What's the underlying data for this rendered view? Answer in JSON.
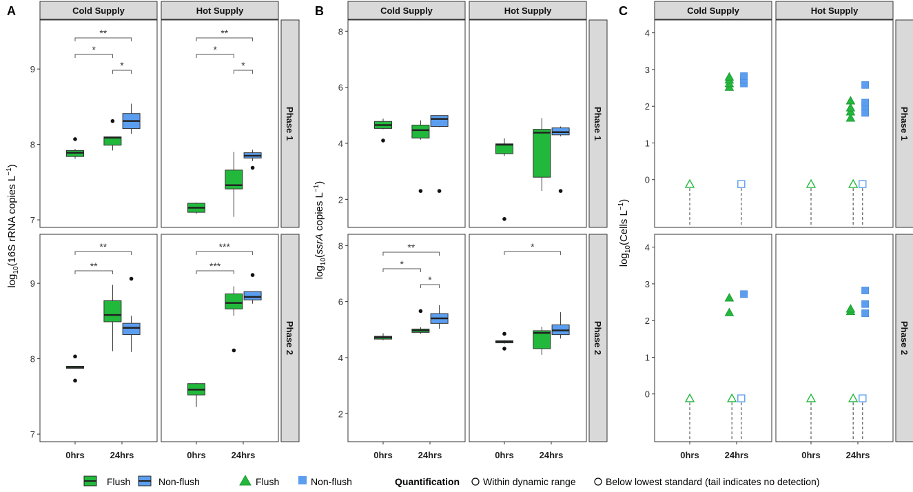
{
  "figure": {
    "panel_letters": [
      "A",
      "B",
      "C"
    ],
    "column_strips": [
      "Cold Supply",
      "Hot Supply"
    ],
    "row_strips": [
      "Phase 1",
      "Phase 2"
    ],
    "x_categories": [
      "0hrs",
      "24hrs"
    ],
    "ylabel_a_main": "log",
    "ylabel_a_sub": "10",
    "ylabel_a_rest": "(16S rRNA copies L",
    "ylabel_a_sup": "−1",
    "ylabel_a_end": ")",
    "ylabel_b_main": "log",
    "ylabel_b_sub": "10",
    "ylabel_b_open": "(",
    "ylabel_b_ital": "ssrA",
    "ylabel_b_rest": " copies L",
    "ylabel_b_sup": "−1",
    "ylabel_b_end": ")",
    "ylabel_c_main": "log",
    "ylabel_c_sub": "10",
    "ylabel_c_rest": "(Cells L",
    "ylabel_c_sup": "−1",
    "ylabel_c_end": ")"
  },
  "legend": {
    "box_flush": "Flush",
    "box_nonflush": "Non-flush",
    "pt_flush": "Flush",
    "pt_nonflush": "Non-flush",
    "quant_title": "Quantification",
    "quant_within": "Within dynamic range",
    "quant_below": "Below lowest standard (tail indicates no detection)"
  },
  "colors": {
    "flush": "#22b83c",
    "nonflush": "#5b9ef0",
    "strip": "#d9d9d9",
    "dark": "#222222"
  },
  "chart_data": [
    {
      "panel": "A",
      "type": "box",
      "ylim": [
        6.9,
        9.65
      ],
      "yticks": [
        7,
        8,
        9
      ],
      "ylabel": "log10(16S rRNA copies L−1)",
      "facets": [
        {
          "col": "Cold Supply",
          "row": "Phase 1",
          "boxes": [
            {
              "x": "0hrs",
              "group": "Flush",
              "q1": 7.84,
              "med": 7.89,
              "q3": 7.92,
              "lo": 7.81,
              "hi": 7.94,
              "out": [
                8.07
              ]
            },
            {
              "x": "24hrs",
              "group": "Flush",
              "q1": 7.99,
              "med": 8.09,
              "q3": 8.1,
              "lo": 7.92,
              "hi": 8.1,
              "out": [
                8.31
              ]
            },
            {
              "x": "24hrs",
              "group": "Non-flush",
              "q1": 8.21,
              "med": 8.31,
              "q3": 8.41,
              "lo": 8.14,
              "hi": 8.54,
              "out": []
            }
          ],
          "sig": [
            {
              "from": "0hrs",
              "to": "24hrs-Non-flush",
              "label": "**"
            },
            {
              "from": "0hrs",
              "to": "24hrs-Flush",
              "label": "*"
            },
            {
              "from": "24hrs-Flush",
              "to": "24hrs-Non-flush",
              "label": "*"
            }
          ]
        },
        {
          "col": "Hot Supply",
          "row": "Phase 1",
          "boxes": [
            {
              "x": "0hrs",
              "group": "Flush",
              "q1": 7.1,
              "med": 7.16,
              "q3": 7.22,
              "lo": 7.08,
              "hi": 7.23,
              "out": []
            },
            {
              "x": "24hrs",
              "group": "Flush",
              "q1": 7.41,
              "med": 7.46,
              "q3": 7.66,
              "lo": 7.04,
              "hi": 7.9,
              "out": []
            },
            {
              "x": "24hrs",
              "group": "Non-flush",
              "q1": 7.82,
              "med": 7.85,
              "q3": 7.89,
              "lo": 7.78,
              "hi": 7.93,
              "out": [
                7.69
              ]
            }
          ],
          "sig": [
            {
              "from": "0hrs",
              "to": "24hrs-Non-flush",
              "label": "**"
            },
            {
              "from": "0hrs",
              "to": "24hrs-Flush",
              "label": "*"
            },
            {
              "from": "24hrs-Flush",
              "to": "24hrs-Non-flush",
              "label": "*"
            }
          ]
        },
        {
          "col": "Cold Supply",
          "row": "Phase 2",
          "boxes": [
            {
              "x": "0hrs",
              "group": "Flush",
              "q1": 7.89,
              "med": 7.89,
              "q3": 7.9,
              "lo": 7.89,
              "hi": 7.9,
              "out": [
                8.03,
                7.71
              ]
            },
            {
              "x": "24hrs",
              "group": "Flush",
              "q1": 8.49,
              "med": 8.58,
              "q3": 8.77,
              "lo": 8.1,
              "hi": 8.98,
              "out": []
            },
            {
              "x": "24hrs",
              "group": "Non-flush",
              "q1": 8.32,
              "med": 8.41,
              "q3": 8.47,
              "lo": 8.09,
              "hi": 8.57,
              "out": [
                9.06
              ]
            }
          ],
          "sig": [
            {
              "from": "0hrs",
              "to": "24hrs-Non-flush",
              "label": "**"
            },
            {
              "from": "0hrs",
              "to": "24hrs-Flush",
              "label": "**"
            }
          ]
        },
        {
          "col": "Hot Supply",
          "row": "Phase 2",
          "boxes": [
            {
              "x": "0hrs",
              "group": "Flush",
              "q1": 7.52,
              "med": 7.59,
              "q3": 7.67,
              "lo": 7.36,
              "hi": 7.68,
              "out": []
            },
            {
              "x": "24hrs",
              "group": "Flush",
              "q1": 8.66,
              "med": 8.74,
              "q3": 8.86,
              "lo": 8.57,
              "hi": 8.96,
              "out": [
                8.11
              ]
            },
            {
              "x": "24hrs",
              "group": "Non-flush",
              "q1": 8.78,
              "med": 8.82,
              "q3": 8.89,
              "lo": 8.73,
              "hi": 8.89,
              "out": [
                9.11
              ]
            }
          ],
          "sig": [
            {
              "from": "0hrs",
              "to": "24hrs-Non-flush",
              "label": "***"
            },
            {
              "from": "0hrs",
              "to": "24hrs-Flush",
              "label": "***"
            }
          ]
        }
      ]
    },
    {
      "panel": "B",
      "type": "box",
      "ylim": [
        1,
        8.4
      ],
      "yticks": [
        2,
        4,
        6,
        8
      ],
      "ylabel": "log10(ssrA copies L−1)",
      "facets": [
        {
          "col": "Cold Supply",
          "row": "Phase 1",
          "boxes": [
            {
              "x": "0hrs",
              "group": "Flush",
              "q1": 4.53,
              "med": 4.65,
              "q3": 4.78,
              "lo": 4.5,
              "hi": 4.88,
              "out": [
                4.1
              ]
            },
            {
              "x": "24hrs",
              "group": "Flush",
              "q1": 4.19,
              "med": 4.47,
              "q3": 4.65,
              "lo": 4.13,
              "hi": 4.82,
              "out": [
                2.3
              ]
            },
            {
              "x": "24hrs",
              "group": "Non-flush",
              "q1": 4.6,
              "med": 4.87,
              "q3": 4.99,
              "lo": 4.58,
              "hi": 4.99,
              "out": [
                2.3
              ]
            }
          ],
          "sig": []
        },
        {
          "col": "Hot Supply",
          "row": "Phase 1",
          "boxes": [
            {
              "x": "0hrs",
              "group": "Flush",
              "q1": 3.63,
              "med": 3.95,
              "q3": 3.98,
              "lo": 3.55,
              "hi": 4.18,
              "out": [
                1.3
              ]
            },
            {
              "x": "24hrs",
              "group": "Flush",
              "q1": 2.79,
              "med": 4.38,
              "q3": 4.5,
              "lo": 2.3,
              "hi": 4.9,
              "out": []
            },
            {
              "x": "24hrs",
              "group": "Non-flush",
              "q1": 4.3,
              "med": 4.4,
              "q3": 4.55,
              "lo": 4.25,
              "hi": 4.6,
              "out": [
                2.3
              ]
            }
          ],
          "sig": []
        },
        {
          "col": "Cold Supply",
          "row": "Phase 2",
          "boxes": [
            {
              "x": "0hrs",
              "group": "Flush",
              "q1": 4.66,
              "med": 4.72,
              "q3": 4.76,
              "lo": 4.62,
              "hi": 4.87,
              "out": []
            },
            {
              "x": "24hrs",
              "group": "Flush",
              "q1": 4.9,
              "med": 4.97,
              "q3": 5.02,
              "lo": 4.85,
              "hi": 5.08,
              "out": [
                5.66
              ]
            },
            {
              "x": "24hrs",
              "group": "Non-flush",
              "q1": 5.22,
              "med": 5.4,
              "q3": 5.57,
              "lo": 5.03,
              "hi": 5.87,
              "out": []
            }
          ],
          "sig": [
            {
              "from": "0hrs",
              "to": "24hrs-Non-flush",
              "label": "**"
            },
            {
              "from": "0hrs",
              "to": "24hrs-Flush",
              "label": "*"
            },
            {
              "from": "24hrs-Flush",
              "to": "24hrs-Non-flush",
              "label": "*"
            }
          ]
        },
        {
          "col": "Hot Supply",
          "row": "Phase 2",
          "boxes": [
            {
              "x": "0hrs",
              "group": "Flush",
              "q1": 4.53,
              "med": 4.57,
              "q3": 4.6,
              "lo": 4.5,
              "hi": 4.62,
              "out": [
                4.85,
                4.32
              ]
            },
            {
              "x": "24hrs",
              "group": "Flush",
              "q1": 4.32,
              "med": 4.88,
              "q3": 4.96,
              "lo": 4.1,
              "hi": 5.1,
              "out": []
            },
            {
              "x": "24hrs",
              "group": "Non-flush",
              "q1": 4.82,
              "med": 4.97,
              "q3": 5.17,
              "lo": 4.68,
              "hi": 5.62,
              "out": []
            }
          ],
          "sig": [
            {
              "from": "0hrs",
              "to": "24hrs-Non-flush",
              "label": "*"
            }
          ]
        }
      ]
    },
    {
      "panel": "C",
      "type": "scatter",
      "ylim": [
        -1.3,
        4.35
      ],
      "yticks": [
        0,
        1,
        2,
        3,
        4
      ],
      "ylabel": "log10(Cells L−1)",
      "facets": [
        {
          "col": "Cold Supply",
          "row": "Phase 1",
          "filled": [
            {
              "x": "24hrs",
              "group": "Flush",
              "values": [
                2.52,
                2.62,
                2.72,
                2.8
              ]
            },
            {
              "x": "24hrs",
              "group": "Non-flush",
              "values": [
                2.62,
                2.72,
                2.82
              ]
            }
          ],
          "hollow": [
            {
              "x": "0hrs",
              "group": "Flush",
              "value": -0.12
            },
            {
              "x": "24hrs",
              "group": "Non-flush",
              "value": -0.12
            }
          ]
        },
        {
          "col": "Hot Supply",
          "row": "Phase 1",
          "filled": [
            {
              "x": "24hrs",
              "group": "Flush",
              "values": [
                1.68,
                1.85,
                1.96,
                2.15
              ]
            },
            {
              "x": "24hrs",
              "group": "Non-flush",
              "values": [
                1.82,
                2.0,
                2.1,
                2.58
              ]
            }
          ],
          "hollow": [
            {
              "x": "0hrs",
              "group": "Flush",
              "value": -0.12
            },
            {
              "x": "24hrs",
              "group": "Flush",
              "value": -0.12
            },
            {
              "x": "24hrs",
              "group": "Non-flush",
              "value": -0.12
            }
          ]
        },
        {
          "col": "Cold Supply",
          "row": "Phase 2",
          "filled": [
            {
              "x": "24hrs",
              "group": "Flush",
              "values": [
                2.22,
                2.62
              ]
            },
            {
              "x": "24hrs",
              "group": "Non-flush",
              "values": [
                2.72
              ]
            }
          ],
          "hollow": [
            {
              "x": "0hrs",
              "group": "Flush",
              "value": -0.12
            },
            {
              "x": "24hrs",
              "group": "Flush",
              "value": -0.12
            },
            {
              "x": "24hrs",
              "group": "Non-flush",
              "value": -0.12
            }
          ]
        },
        {
          "col": "Hot Supply",
          "row": "Phase 2",
          "filled": [
            {
              "x": "24hrs",
              "group": "Flush",
              "values": [
                2.25,
                2.32
              ]
            },
            {
              "x": "24hrs",
              "group": "Non-flush",
              "values": [
                2.2,
                2.45,
                2.82
              ]
            }
          ],
          "hollow": [
            {
              "x": "0hrs",
              "group": "Flush",
              "value": -0.12
            },
            {
              "x": "24hrs",
              "group": "Flush",
              "value": -0.12
            },
            {
              "x": "24hrs",
              "group": "Non-flush",
              "value": -0.12
            }
          ]
        }
      ]
    }
  ]
}
